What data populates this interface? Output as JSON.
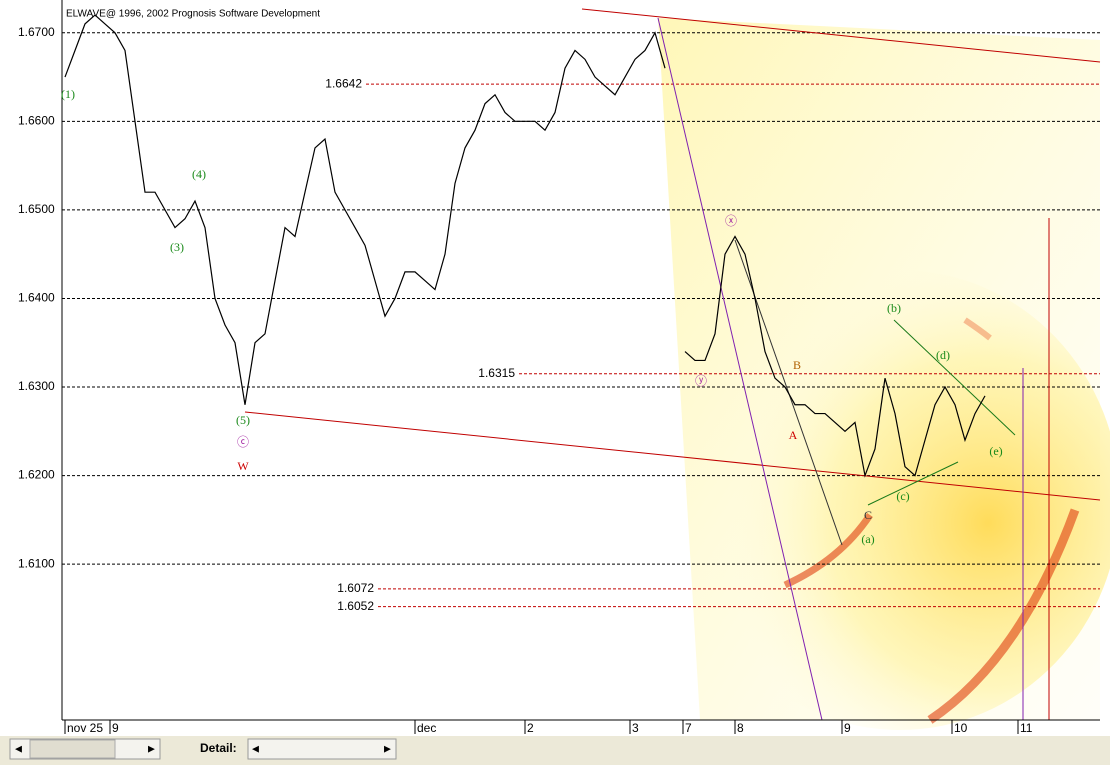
{
  "header": {
    "title": "ELWAVE@ 1996, 2002 Prognosis Software Development"
  },
  "chart_data": {
    "type": "line",
    "xlim": [
      -0.3,
      103.5
    ],
    "xticks": [
      {
        "value": 0,
        "label": "nov 25"
      },
      {
        "value": 4.5,
        "label": "9"
      },
      {
        "value": 35,
        "label": "dec"
      },
      {
        "value": 46,
        "label": "2"
      },
      {
        "value": 56.5,
        "label": "3"
      },
      {
        "value": 61.8,
        "label": "7"
      },
      {
        "value": 67,
        "label": "8"
      },
      {
        "value": 77.7,
        "label": "9"
      },
      {
        "value": 88.7,
        "label": "10"
      },
      {
        "value": 95.3,
        "label": "11"
      }
    ],
    "ylim": [
      1.5924,
      1.6737
    ],
    "yticks": [
      {
        "value": 1.61,
        "label": "1.6100"
      },
      {
        "value": 1.62,
        "label": "1.6200"
      },
      {
        "value": 1.63,
        "label": "1.6300"
      },
      {
        "value": 1.64,
        "label": "1.6400"
      },
      {
        "value": 1.65,
        "label": "1.6500"
      },
      {
        "value": 1.66,
        "label": "1.6600"
      },
      {
        "value": 1.67,
        "label": "1.6700"
      }
    ],
    "grid": true,
    "levels": [
      1.6642,
      1.6315,
      1.6072,
      1.6052
    ],
    "series": [
      {
        "color": "#000000",
        "values": [
          1.665,
          1.668,
          1.671,
          1.672,
          1.671,
          1.67,
          1.668,
          1.66,
          1.652,
          1.652,
          1.65,
          1.648,
          1.649,
          1.651,
          1.648,
          1.64,
          1.637,
          1.635,
          1.628,
          1.635,
          1.636,
          1.642,
          1.648,
          1.647,
          1.652,
          1.657,
          1.658,
          1.652,
          1.65,
          1.648,
          1.646,
          1.642,
          1.638,
          1.64,
          1.643,
          1.643,
          1.642,
          1.641,
          1.645,
          1.653,
          1.657,
          1.659,
          1.662,
          1.663,
          1.661,
          1.66,
          1.66,
          1.66,
          1.659,
          1.661,
          1.666,
          1.668,
          1.667,
          1.665,
          1.664,
          1.663,
          1.665,
          1.667,
          1.668,
          1.67,
          1.666,
          null,
          1.634,
          1.633,
          1.633,
          1.636,
          1.645,
          1.647,
          1.645,
          1.64,
          1.634,
          1.631,
          1.63,
          1.628,
          1.628,
          1.627,
          1.627,
          1.626,
          1.625,
          1.626,
          1.62,
          1.623,
          1.631,
          1.627,
          1.621,
          1.62,
          1.624,
          1.628,
          1.63,
          1.628,
          1.624,
          1.627,
          1.629
        ]
      }
    ],
    "annotations": [
      "(1)",
      "(3)",
      "(4)",
      "(5)",
      "ⓒ",
      "W",
      "ⓧ",
      "ⓨ",
      "A",
      "B",
      "C",
      "(a)",
      "(b)",
      "(c)",
      "(d)",
      "(e)"
    ]
  },
  "footer": {
    "detail": "Detail:"
  }
}
